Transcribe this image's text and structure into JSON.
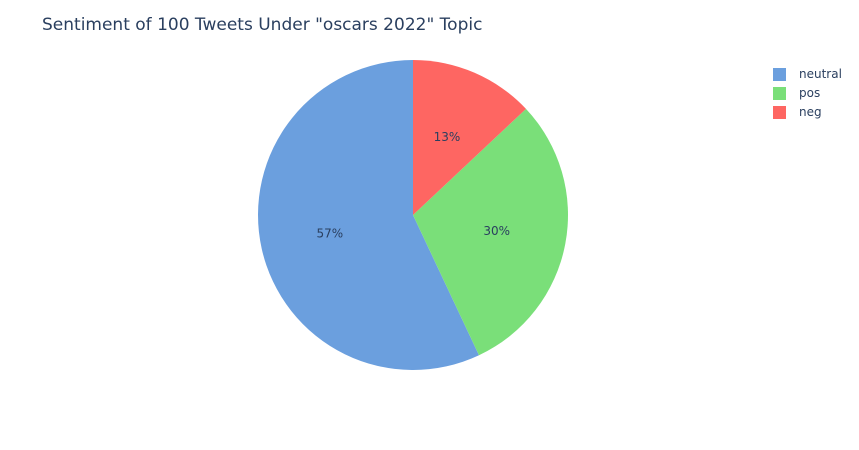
{
  "chart_data": {
    "type": "pie",
    "title": "Sentiment of 100 Tweets Under \"oscars 2022\" Topic",
    "categories": [
      "neutral",
      "pos",
      "neg"
    ],
    "values": [
      57,
      30,
      13
    ],
    "labels": [
      "57%",
      "30%",
      "13%"
    ],
    "colors": [
      "#6b9fde",
      "#7adf79",
      "#fe6662"
    ],
    "direction": "counterclockwise",
    "start_angle": "12 o'clock",
    "legend_position": "top-right",
    "legend": [
      {
        "name": "neutral",
        "color": "#6b9fde"
      },
      {
        "name": "pos",
        "color": "#7adf79"
      },
      {
        "name": "neg",
        "color": "#fe6662"
      }
    ]
  }
}
